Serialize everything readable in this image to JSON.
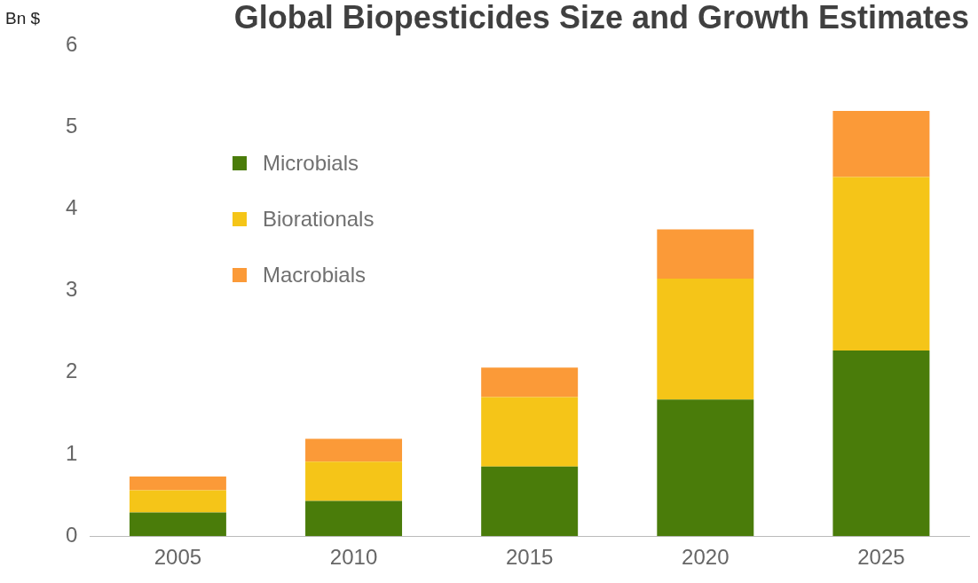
{
  "chart_data": {
    "type": "bar",
    "title": "Global Biopesticides Size and Growth Estimates",
    "ylabel": "Bn $",
    "categories": [
      "2005",
      "2010",
      "2015",
      "2020",
      "2025"
    ],
    "stacked": true,
    "series": [
      {
        "name": "Microbials",
        "color": "#4a7c0a",
        "values": [
          0.29,
          0.43,
          0.85,
          1.67,
          2.27
        ]
      },
      {
        "name": "Biorationals",
        "color": "#f5c518",
        "values": [
          0.27,
          0.48,
          0.85,
          1.48,
          2.12
        ]
      },
      {
        "name": "Macrobials",
        "color": "#fb9a38",
        "values": [
          0.17,
          0.28,
          0.36,
          0.6,
          0.81
        ]
      }
    ],
    "ylim": [
      0,
      6
    ],
    "yticks": [
      0,
      1,
      2,
      3,
      4,
      5,
      6
    ],
    "grid": false,
    "legend": "top left"
  }
}
